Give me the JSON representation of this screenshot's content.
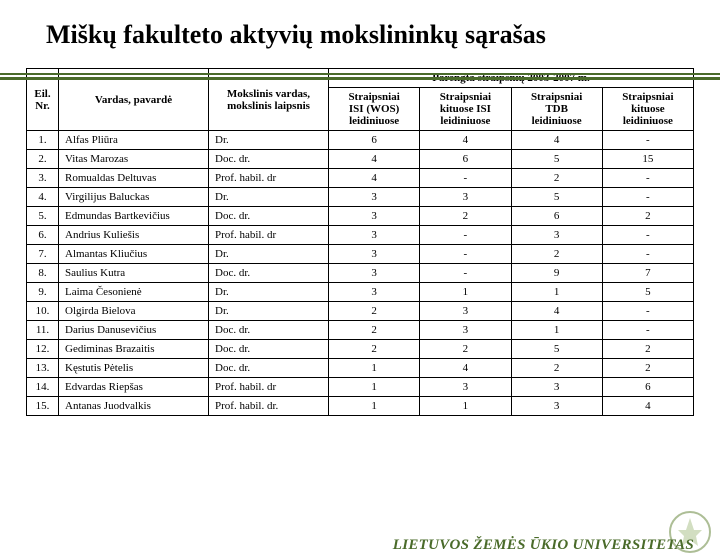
{
  "title": "Miškų fakulteto aktyvių mokslininkų sąrašas",
  "table": {
    "super_header": "Parengta straipsnių 2003-2007 m.",
    "headers": {
      "nr": "Eil.\nNr.",
      "name": "Vardas, pavardė",
      "degree": "Mokslinis vardas,\nmokslinis laipsnis",
      "c1": "Straipsniai\nISI (WOS)\nleidiniuose",
      "c2": "Straipsniai\nkituose ISI\nleidiniuose",
      "c3": "Straipsniai\nTDB\nleidiniuose",
      "c4": "Straipsniai\nkituose\nleidiniuose"
    },
    "rows": [
      {
        "nr": "1.",
        "name": "Alfas Pliūra",
        "deg": "Dr.",
        "v": [
          "6",
          "4",
          "4",
          "-"
        ]
      },
      {
        "nr": "2.",
        "name": "Vitas Marozas",
        "deg": "Doc. dr.",
        "v": [
          "4",
          "6",
          "5",
          "15"
        ]
      },
      {
        "nr": "3.",
        "name": "Romualdas Deltuvas",
        "deg": "Prof. habil. dr",
        "v": [
          "4",
          "-",
          "2",
          "-"
        ]
      },
      {
        "nr": "4.",
        "name": "Virgilijus Baluckas",
        "deg": "Dr.",
        "v": [
          "3",
          "3",
          "5",
          "-"
        ]
      },
      {
        "nr": "5.",
        "name": "Edmundas Bartkevičius",
        "deg": "Doc. dr.",
        "v": [
          "3",
          "2",
          "6",
          "2"
        ]
      },
      {
        "nr": "6.",
        "name": "Andrius Kuliešis",
        "deg": "Prof. habil. dr",
        "v": [
          "3",
          "-",
          "3",
          "-"
        ]
      },
      {
        "nr": "7.",
        "name": "Almantas Kliučius",
        "deg": "Dr.",
        "v": [
          "3",
          "-",
          "2",
          "-"
        ]
      },
      {
        "nr": "8.",
        "name": "Saulius Kutra",
        "deg": "Doc. dr.",
        "v": [
          "3",
          "-",
          "9",
          "7"
        ]
      },
      {
        "nr": "9.",
        "name": "Laima Česonienė",
        "deg": "Dr.",
        "v": [
          "3",
          "1",
          "1",
          "5"
        ]
      },
      {
        "nr": "10.",
        "name": "Olgirda Bielova",
        "deg": "Dr.",
        "v": [
          "2",
          "3",
          "4",
          "-"
        ]
      },
      {
        "nr": "11.",
        "name": "Darius Danusevičius",
        "deg": "Doc. dr.",
        "v": [
          "2",
          "3",
          "1",
          "-"
        ]
      },
      {
        "nr": "12.",
        "name": "Gediminas Brazaitis",
        "deg": "Doc. dr.",
        "v": [
          "2",
          "2",
          "5",
          "2"
        ]
      },
      {
        "nr": "13.",
        "name": "Kęstutis Pėtelis",
        "deg": "Doc. dr.",
        "v": [
          "1",
          "4",
          "2",
          "2"
        ]
      },
      {
        "nr": "14.",
        "name": "Edvardas Riepšas",
        "deg": "Prof. habil. dr",
        "v": [
          "1",
          "3",
          "3",
          "6"
        ]
      },
      {
        "nr": "15.",
        "name": "Antanas Juodvalkis",
        "deg": "Prof. habil. dr.",
        "v": [
          "1",
          "1",
          "3",
          "4"
        ]
      }
    ]
  },
  "footer": "LIETUVOS ŽEMĖS ŪKIO UNIVERSITETAS",
  "colors": {
    "accent": "#4a6b2a"
  }
}
